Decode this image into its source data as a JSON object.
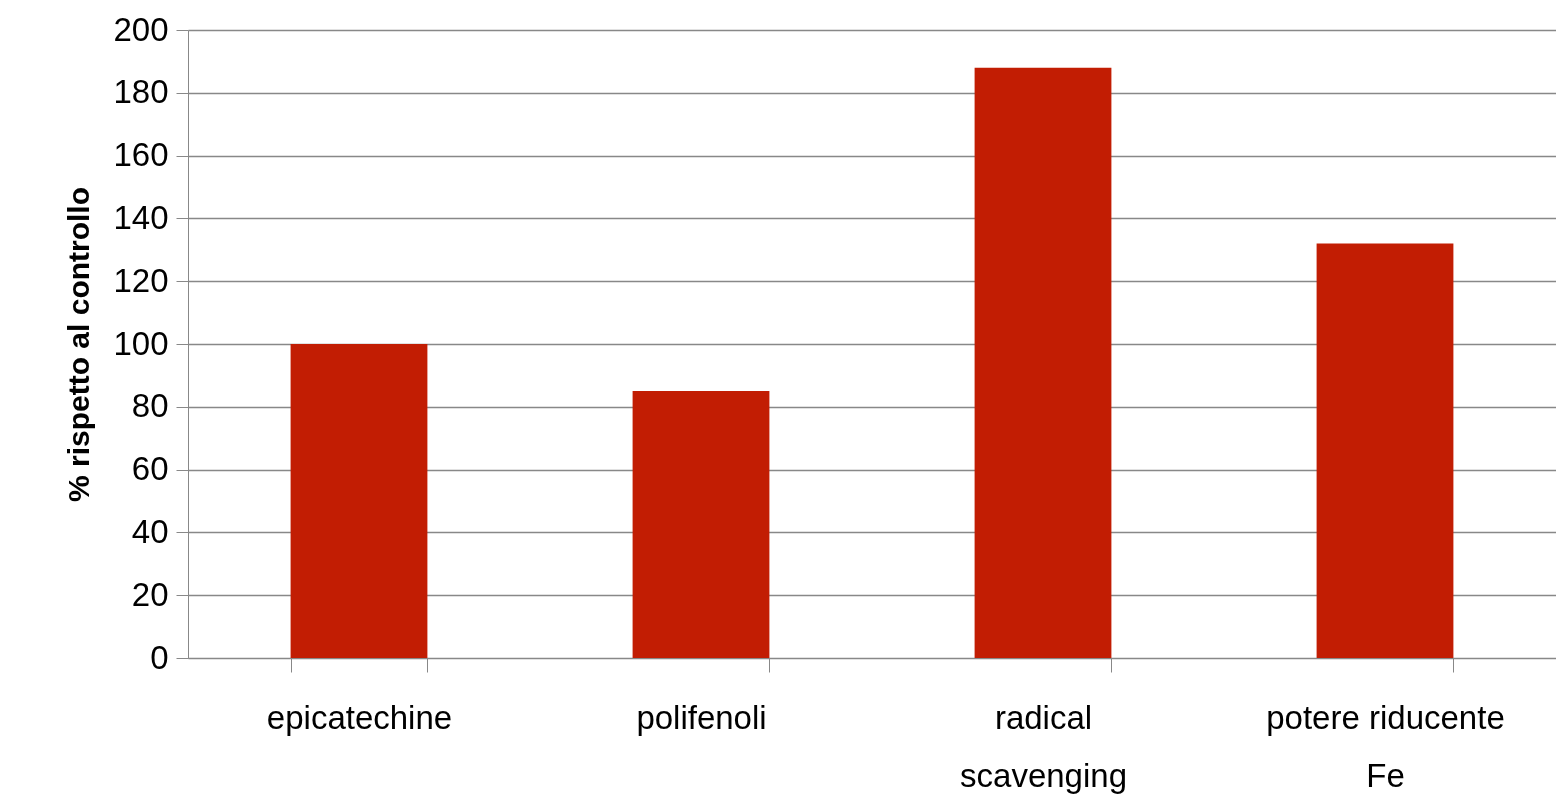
{
  "chart_data": {
    "type": "bar",
    "ylabel": "% rispetto al controllo",
    "categories": [
      "epicatechine",
      "polifenoli",
      "radical scavenging",
      "potere riducente Fe"
    ],
    "values": [
      100,
      85,
      188,
      132
    ],
    "color": "#c21d03",
    "ylim": [
      0,
      200
    ],
    "yticks": [
      0,
      20,
      40,
      60,
      80,
      100,
      120,
      140,
      160,
      180,
      200
    ],
    "grid": "y"
  }
}
